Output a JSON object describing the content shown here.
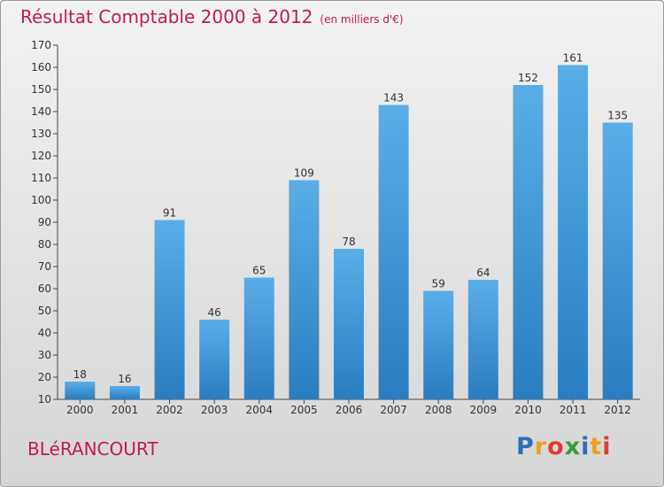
{
  "title": "Résultat Comptable 2000 à 2012",
  "subtitle": "(en milliers d'€)",
  "commune": "BLéRANCOURT",
  "logo": {
    "letters": [
      "P",
      "r",
      "o",
      "x",
      "i",
      "t",
      "i"
    ],
    "colors": [
      "#2e6fb7",
      "#f0a020",
      "#e33b2f",
      "#3a9a3a",
      "#2e6fb7",
      "#f0a020",
      "#e33b2f"
    ]
  },
  "colors": {
    "title": "#c2185b",
    "bar_top": "#5aaee8",
    "bar_bottom": "#2a7dc0"
  },
  "chart_data": {
    "type": "bar",
    "categories": [
      "2000",
      "2001",
      "2002",
      "2003",
      "2004",
      "2005",
      "2006",
      "2007",
      "2008",
      "2009",
      "2010",
      "2011",
      "2012"
    ],
    "values": [
      18,
      16,
      91,
      46,
      65,
      109,
      78,
      143,
      59,
      64,
      152,
      161,
      135
    ],
    "ylim": [
      10,
      170
    ],
    "yticks": [
      10,
      20,
      30,
      40,
      50,
      60,
      70,
      80,
      90,
      100,
      110,
      120,
      130,
      140,
      150,
      160,
      170
    ],
    "data_labels": true,
    "grid": false
  }
}
